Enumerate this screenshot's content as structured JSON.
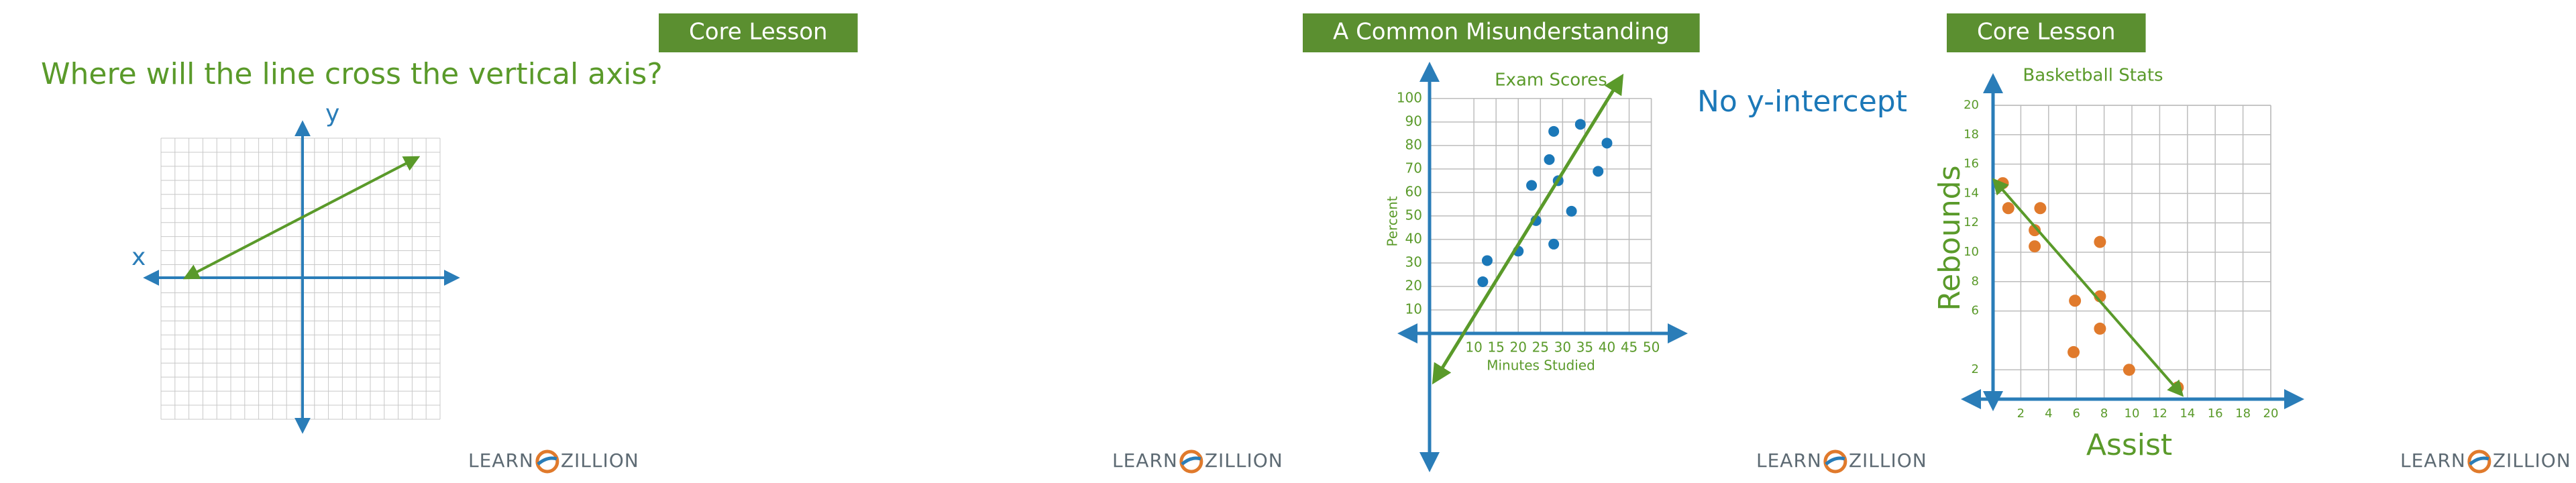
{
  "slides": [
    {
      "question": "Where will the line cross the vertical axis?",
      "x_axis_label": "x",
      "y_axis_label": "y",
      "logo": [
        "LEARN",
        "ZILLION"
      ]
    },
    {
      "badge": "Core Lesson",
      "logo": [
        "LEARN",
        "ZILLION"
      ]
    },
    {
      "badge": "A Common Misunderstanding",
      "annotation": "No y-intercept",
      "logo": [
        "LEARN",
        "ZILLION"
      ],
      "chart": {
        "type": "scatter",
        "title": "Exam Scores",
        "x_label": "Minutes Studied",
        "y_label": "Percent",
        "color": "#1b78b8",
        "x": [
          13,
          12,
          20,
          23,
          24,
          27,
          28,
          28,
          29,
          34,
          32,
          38,
          40
        ],
        "y": [
          31,
          22,
          35,
          63,
          48,
          74,
          38,
          86,
          65,
          89,
          52,
          69,
          81
        ],
        "xlim": [
          0,
          50
        ],
        "ylim": [
          0,
          100
        ],
        "xticks": [
          10,
          15,
          20,
          25,
          30,
          35,
          40,
          45,
          50
        ],
        "yticks": [
          10,
          20,
          30,
          40,
          50,
          60,
          70,
          80,
          90,
          100
        ],
        "grid": true
      }
    },
    {
      "badge": "Core Lesson",
      "logo": [
        "LEARN",
        "ZILLION"
      ],
      "chart": {
        "type": "scatter",
        "title": "Basketball Stats",
        "x_label": "Assist",
        "y_label": "Rebounds",
        "color": "#e07a2c",
        "x": [
          0.7,
          1.1,
          3.4,
          3,
          3,
          7.7,
          5.9,
          7.7,
          5.8,
          7.7,
          9.8,
          13.3
        ],
        "y": [
          14.7,
          13,
          13,
          11.5,
          10.4,
          10.7,
          6.7,
          7,
          3.2,
          4.8,
          2,
          0.8
        ],
        "xlim": [
          0,
          20
        ],
        "ylim": [
          0,
          20
        ],
        "xticks": [
          2,
          4,
          6,
          8,
          10,
          12,
          14,
          16,
          18,
          20
        ],
        "yticks": [
          2,
          6,
          8,
          10,
          12,
          14,
          16,
          18,
          20
        ],
        "grid": true
      }
    }
  ]
}
